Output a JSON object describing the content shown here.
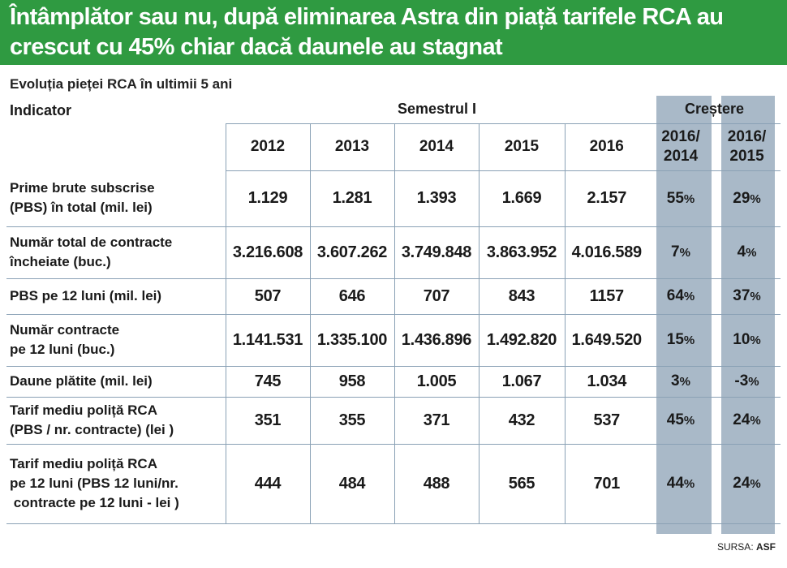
{
  "headline": {
    "line1": "Întâmplător sau nu, după eliminarea Astra din piață tarifele RCA au",
    "line2": "crescut cu 45% chiar dacă daunele au stagnat"
  },
  "subtitle": "Evoluția pieței RCA în ultimii 5 ani",
  "header": {
    "indicator": "Indicator",
    "semester": "Semestrul I",
    "growth": "Creștere",
    "years": [
      "2012",
      "2013",
      "2014",
      "2015",
      "2016"
    ],
    "growth_cols": [
      {
        "line1": "2016/",
        "line2": "2014"
      },
      {
        "line1": "2016/",
        "line2": "2015"
      }
    ]
  },
  "rows": [
    {
      "label": [
        "Prime brute subscrise",
        "(PBS) în total (mil. lei)"
      ],
      "values": [
        "1.129",
        "1.281",
        "1.393",
        "1.669",
        "2.157"
      ],
      "g1": "55",
      "g2": "29"
    },
    {
      "label": [
        "Număr total de contracte",
        "încheiate (buc.)"
      ],
      "values": [
        "3.216.608",
        "3.607.262",
        "3.749.848",
        "3.863.952",
        "4.016.589"
      ],
      "g1": "7",
      "g2": "4"
    },
    {
      "label": [
        "PBS pe 12 luni (mil. lei)"
      ],
      "values": [
        "507",
        "646",
        "707",
        "843",
        "1157"
      ],
      "g1": "64",
      "g2": "37"
    },
    {
      "label": [
        "Număr contracte",
        "pe 12 luni (buc.)"
      ],
      "values": [
        "1.141.531",
        "1.335.100",
        "1.436.896",
        "1.492.820",
        "1.649.520"
      ],
      "g1": "15",
      "g2": "10"
    },
    {
      "label": [
        "Daune plătite (mil. lei)"
      ],
      "values": [
        "745",
        "958",
        "1.005",
        "1.067",
        "1.034"
      ],
      "g1": "3",
      "g2": "-3"
    },
    {
      "label": [
        "Tarif mediu poliță RCA",
        "(PBS / nr. contracte) (lei )"
      ],
      "values": [
        "351",
        "355",
        "371",
        "432",
        "537"
      ],
      "g1": "45",
      "g2": "24"
    },
    {
      "label": [
        "Tarif mediu poliță RCA",
        "pe 12 luni (PBS 12 luni/nr.",
        " contracte pe 12 luni - lei )"
      ],
      "values": [
        "444",
        "484",
        "488",
        "565",
        "701"
      ],
      "g1": "44",
      "g2": "24"
    }
  ],
  "pct_sign": "%",
  "source": {
    "label": "SURSA:",
    "name": "ASF"
  },
  "colors": {
    "banner": "#2f9a41",
    "growth_column": "#a9b9c8",
    "rule": "#8aa1b5"
  }
}
